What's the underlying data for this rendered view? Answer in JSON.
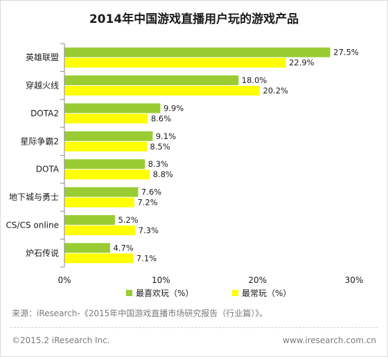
{
  "chart_data": {
    "type": "bar",
    "orientation": "horizontal",
    "title": "2014年中国游戏直播用户玩的游戏产品",
    "categories": [
      "英雄联盟",
      "穿越火线",
      "DOTA2",
      "星际争霸2",
      "DOTA",
      "地下城与勇士",
      "CS/CS online",
      "炉石传说"
    ],
    "series": [
      {
        "name": "最喜欢玩（%）",
        "values": [
          27.5,
          18.0,
          9.9,
          9.1,
          8.3,
          7.6,
          5.2,
          4.7
        ],
        "color": "#99cc33"
      },
      {
        "name": "最常玩（%）",
        "values": [
          22.9,
          20.2,
          8.6,
          8.5,
          8.8,
          7.2,
          7.3,
          7.1
        ],
        "color": "#ffff00"
      }
    ],
    "value_labels": [
      [
        "27.5%",
        "18.0%",
        "9.9%",
        "9.1%",
        "8.3%",
        "7.6%",
        "5.2%",
        "4.7%"
      ],
      [
        "22.9%",
        "20.2%",
        "8.6%",
        "8.5%",
        "8.8%",
        "7.2%",
        "7.3%",
        "7.1%"
      ]
    ],
    "xlim": [
      0,
      30
    ],
    "xticks": [
      "0%",
      "10%",
      "20%",
      "30%"
    ],
    "xlabel": "",
    "ylabel": "",
    "grid": false,
    "legend_position": "bottom"
  },
  "source": "来源：iResearch-《2015年中国游戏直播市场研究报告（行业篇）》。",
  "copyright": "©2015.2 iResearch Inc.",
  "website": "www.iresearch.com.cn"
}
